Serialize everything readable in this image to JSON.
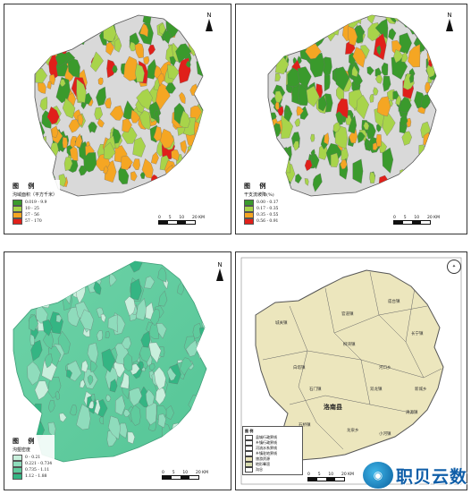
{
  "panels": {
    "p1": {
      "legend_title": "图 例",
      "legend_subtitle": "沟域面积（平方千米）",
      "classes": [
        {
          "label": "0.019 - 9.9",
          "color": "#3a9a2c"
        },
        {
          "label": "10 - 25",
          "color": "#a8d44a"
        },
        {
          "label": "27 - 56",
          "color": "#f5a623"
        },
        {
          "label": "57 - 170",
          "color": "#e0201a"
        }
      ],
      "scale": [
        "0",
        "5",
        "10",
        "20 KM"
      ],
      "north": "N"
    },
    "p2": {
      "legend_title": "图 例",
      "legend_subtitle": "干支流坡降(%)",
      "classes": [
        {
          "label": "0.00 - 0.17",
          "color": "#3a9a2c"
        },
        {
          "label": "0.17 - 0.35",
          "color": "#a8d44a"
        },
        {
          "label": "0.35 - 0.55",
          "color": "#f5a623"
        },
        {
          "label": "0.56 - 0.91",
          "color": "#e0201a"
        }
      ],
      "scale": [
        "0",
        "5",
        "10",
        "20 KM"
      ],
      "north": "N"
    },
    "p3": {
      "legend_title": "图 例",
      "legend_subtitle": "沟壑密度",
      "classes": [
        {
          "label": "0 - 0.21",
          "color": "#c8efdc"
        },
        {
          "label": "0.221 - 0.734",
          "color": "#8fdcbc"
        },
        {
          "label": "0.735 - 1.11",
          "color": "#5fcb9d"
        },
        {
          "label": "1.12 - 1.88",
          "color": "#34b583"
        }
      ],
      "scale": [
        "0",
        "5",
        "10",
        "20 KM"
      ],
      "north": "N"
    },
    "p4": {
      "legend_title": "图 例",
      "classes": [
        {
          "label": "县城行政界线",
          "color": "#ffffff"
        },
        {
          "label": "乡镇行政界线",
          "color": "#ffffff"
        },
        {
          "label": "河流水系界线",
          "color": "#ffffff"
        },
        {
          "label": "乡镇驻地界线",
          "color": "#ffffff"
        },
        {
          "label": "旅游资源",
          "color": "#e9e3b8"
        },
        {
          "label": "地形晕渲",
          "color": "#d8dcb0"
        },
        {
          "label": "沟谷",
          "color": "#ffffff"
        }
      ],
      "towns": [
        "城关镇",
        "官道镇",
        "庙台镇",
        "长宁镇",
        "白塔镇",
        "柳湾镇",
        "河口乡",
        "新城乡",
        "石门镇",
        "双龙镇",
        "清源镇",
        "石桥镇",
        "龙泉乡",
        "小河镇"
      ],
      "county_label": "洛南县",
      "scale": [
        "0",
        "5",
        "10",
        "20 KM"
      ]
    }
  },
  "brand": {
    "name": "职贝云数"
  }
}
